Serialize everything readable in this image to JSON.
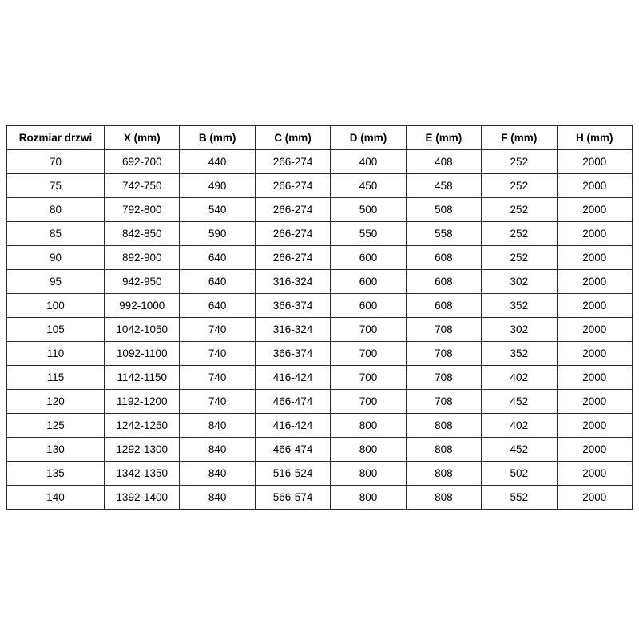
{
  "colors": {
    "background": "#ffffff",
    "border": "#2b2b2b",
    "text": "#000000"
  },
  "table": {
    "name": "door-size-specification-table",
    "headers": [
      "Rozmiar drzwi",
      "X (mm)",
      "B (mm)",
      "C (mm)",
      "D (mm)",
      "E (mm)",
      "F (mm)",
      "H (mm)"
    ],
    "rows": [
      [
        "70",
        "692-700",
        "440",
        "266-274",
        "400",
        "408",
        "252",
        "2000"
      ],
      [
        "75",
        "742-750",
        "490",
        "266-274",
        "450",
        "458",
        "252",
        "2000"
      ],
      [
        "80",
        "792-800",
        "540",
        "266-274",
        "500",
        "508",
        "252",
        "2000"
      ],
      [
        "85",
        "842-850",
        "590",
        "266-274",
        "550",
        "558",
        "252",
        "2000"
      ],
      [
        "90",
        "892-900",
        "640",
        "266-274",
        "600",
        "608",
        "252",
        "2000"
      ],
      [
        "95",
        "942-950",
        "640",
        "316-324",
        "600",
        "608",
        "302",
        "2000"
      ],
      [
        "100",
        "992-1000",
        "640",
        "366-374",
        "600",
        "608",
        "352",
        "2000"
      ],
      [
        "105",
        "1042-1050",
        "740",
        "316-324",
        "700",
        "708",
        "302",
        "2000"
      ],
      [
        "110",
        "1092-1100",
        "740",
        "366-374",
        "700",
        "708",
        "352",
        "2000"
      ],
      [
        "115",
        "1142-1150",
        "740",
        "416-424",
        "700",
        "708",
        "402",
        "2000"
      ],
      [
        "120",
        "1192-1200",
        "740",
        "466-474",
        "700",
        "708",
        "452",
        "2000"
      ],
      [
        "125",
        "1242-1250",
        "840",
        "416-424",
        "800",
        "808",
        "402",
        "2000"
      ],
      [
        "130",
        "1292-1300",
        "840",
        "466-474",
        "800",
        "808",
        "452",
        "2000"
      ],
      [
        "135",
        "1342-1350",
        "840",
        "516-524",
        "800",
        "808",
        "502",
        "2000"
      ],
      [
        "140",
        "1392-1400",
        "840",
        "566-574",
        "800",
        "808",
        "552",
        "2000"
      ]
    ]
  }
}
